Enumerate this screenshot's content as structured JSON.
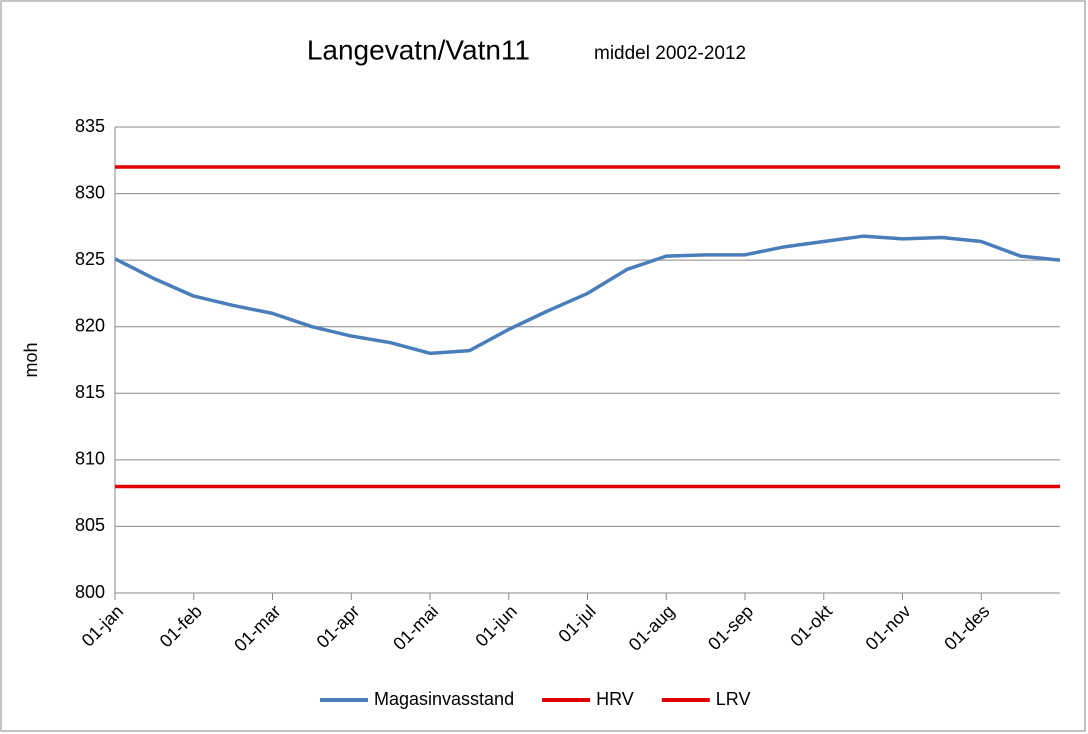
{
  "chart_data": {
    "type": "line",
    "title": "Langevatn/Vatn11",
    "subtitle": "middel 2002-2012",
    "y_label": "moh",
    "categories": [
      "01-jan",
      null,
      "01-feb",
      null,
      "01-mar",
      null,
      "01-apr",
      null,
      "01-mai",
      null,
      "01-jun",
      null,
      "01-jul",
      null,
      "01-aug",
      null,
      "01-sep",
      null,
      "01-okt",
      null,
      "01-nov",
      null,
      "01-des",
      null,
      null
    ],
    "series": [
      {
        "name": "Magasinvasstand",
        "color": "#4a7ebb",
        "values": [
          825.1,
          823.6,
          822.3,
          821.6,
          821,
          820,
          819.3,
          818.8,
          818,
          818.2,
          819.8,
          821.2,
          822.5,
          824.3,
          825.3,
          825.4,
          825.4,
          826,
          826.4,
          826.8,
          826.6,
          826.7,
          826.4,
          825.3,
          825
        ]
      },
      {
        "name": "HRV",
        "color": "#e00000",
        "values": [
          832,
          832,
          832,
          832,
          832,
          832,
          832,
          832,
          832,
          832,
          832,
          832,
          832,
          832,
          832,
          832,
          832,
          832,
          832,
          832,
          832,
          832,
          832,
          832,
          832
        ]
      },
      {
        "name": "LRV",
        "color": "#e00000",
        "values": [
          808,
          808,
          808,
          808,
          808,
          808,
          808,
          808,
          808,
          808,
          808,
          808,
          808,
          808,
          808,
          808,
          808,
          808,
          808,
          808,
          808,
          808,
          808,
          808,
          808
        ]
      }
    ],
    "ylim": [
      800,
      835
    ],
    "yticks": [
      800,
      805,
      810,
      815,
      820,
      825,
      830,
      835
    ],
    "grid": true,
    "legend": "bottom"
  }
}
